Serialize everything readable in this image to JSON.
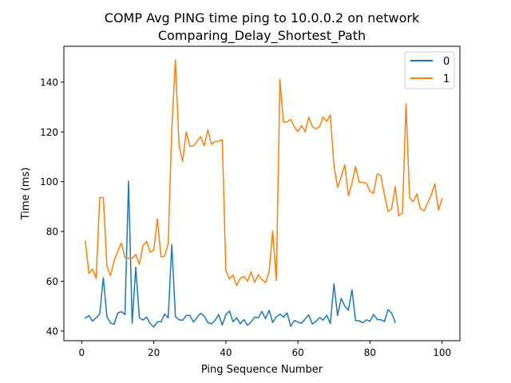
{
  "chart_data": {
    "type": "line",
    "title_line1": "COMP Avg PING time ping to 10.0.0.2 on network",
    "title_line2": "Comparing_Delay_Shortest_Path",
    "xlabel": "Ping Sequence Number",
    "ylabel": "Time (ms)",
    "xlim": [
      -4.95,
      104.95
    ],
    "ylim": [
      36.1,
      154.4
    ],
    "xticks": [
      0,
      20,
      40,
      60,
      80,
      100
    ],
    "yticks": [
      40,
      60,
      80,
      100,
      120,
      140
    ],
    "legend_position": "top-right",
    "series": [
      {
        "name": "0",
        "color": "#1f77b4",
        "x": [
          1,
          2,
          3,
          4,
          5,
          6,
          7,
          8,
          9,
          10,
          11,
          12,
          13,
          14,
          15,
          16,
          17,
          18,
          19,
          20,
          21,
          22,
          23,
          24,
          25,
          26,
          27,
          28,
          29,
          30,
          31,
          32,
          33,
          34,
          35,
          36,
          37,
          38,
          39,
          40,
          41,
          42,
          43,
          44,
          45,
          46,
          47,
          48,
          49,
          50,
          51,
          52,
          53,
          54,
          55,
          56,
          57,
          58,
          59,
          60,
          61,
          62,
          63,
          64,
          65,
          66,
          67,
          68,
          69,
          70,
          71,
          72,
          73,
          74,
          75,
          76,
          77,
          78,
          79,
          80,
          81,
          82,
          83,
          84,
          85,
          86,
          87
        ],
        "values": [
          45.2,
          46.2,
          44.0,
          45.3,
          46.8,
          61.4,
          45.7,
          43.2,
          42.7,
          47.2,
          47.8,
          46.6,
          100.2,
          43.1,
          65.6,
          45.3,
          44.4,
          45.6,
          43.0,
          41.6,
          43.7,
          43.7,
          46.8,
          45.3,
          74.7,
          45.8,
          44.5,
          44.3,
          46.2,
          46.3,
          43.6,
          45.4,
          47.1,
          46.0,
          43.4,
          42.9,
          44.2,
          46.6,
          42.4,
          46.6,
          48.0,
          43.7,
          45.3,
          42.9,
          44.6,
          42.3,
          43.6,
          45.6,
          45.3,
          47.9,
          44.9,
          48.3,
          43.4,
          45.7,
          46.8,
          45.6,
          47.3,
          41.9,
          44.2,
          43.6,
          43.1,
          44.8,
          46.5,
          42.8,
          43.8,
          45.4,
          44.4,
          46.3,
          43.0,
          59.0,
          46.2,
          53.1,
          50.0,
          48.3,
          56.6,
          44.2,
          44.1,
          43.3,
          44.5,
          43.9,
          46.6,
          44.6,
          44.5,
          43.8,
          48.6,
          47.2,
          43.5
        ]
      },
      {
        "name": "1",
        "color": "#ff7f0e",
        "x": [
          1,
          2,
          3,
          4,
          5,
          6,
          7,
          8,
          9,
          10,
          11,
          12,
          13,
          14,
          15,
          16,
          17,
          18,
          19,
          20,
          21,
          22,
          23,
          24,
          25,
          26,
          27,
          28,
          29,
          30,
          31,
          32,
          33,
          34,
          35,
          36,
          37,
          38,
          39,
          40,
          41,
          42,
          43,
          44,
          45,
          46,
          47,
          48,
          49,
          50,
          51,
          52,
          53,
          54,
          55,
          56,
          57,
          58,
          59,
          60,
          61,
          62,
          63,
          64,
          65,
          66,
          67,
          68,
          69,
          70,
          71,
          72,
          73,
          74,
          75,
          76,
          77,
          78,
          79,
          80,
          81,
          82,
          83,
          84,
          85,
          86,
          87,
          88,
          89,
          90,
          91,
          92,
          93,
          94,
          95,
          96,
          97,
          98,
          99,
          100
        ],
        "values": [
          76.1,
          63.1,
          64.8,
          61.2,
          93.6,
          93.6,
          66.0,
          62.3,
          68.3,
          72.1,
          75.3,
          69.5,
          69.2,
          69.2,
          70.8,
          66.8,
          74.2,
          76.0,
          71.6,
          72.5,
          85.0,
          69.8,
          70.1,
          75.0,
          121.2,
          148.9,
          114.8,
          108.1,
          120.0,
          114.3,
          114.3,
          116.2,
          118.1,
          114.4,
          120.9,
          115.0,
          116.1,
          116.3,
          116.9,
          64.4,
          60.9,
          62.5,
          58.2,
          61.2,
          61.9,
          60.0,
          63.8,
          59.5,
          62.6,
          60.7,
          59.4,
          63.8,
          80.2,
          60.3,
          141.0,
          124.0,
          124.0,
          125.0,
          122.0,
          120.1,
          122.5,
          120.0,
          125.9,
          122.2,
          121.2,
          122.2,
          125.9,
          124.2,
          126.8,
          106.5,
          97.7,
          102.0,
          106.7,
          94.4,
          99.3,
          106.1,
          99.8,
          99.7,
          99.4,
          96.1,
          95.4,
          103.1,
          102.5,
          94.8,
          88.0,
          89.1,
          98.0,
          86.3,
          87.4,
          131.1,
          93.4,
          92.0,
          95.1,
          89.1,
          88.3,
          91.4,
          94.6,
          99.1,
          88.6,
          93.2
        ]
      }
    ]
  }
}
